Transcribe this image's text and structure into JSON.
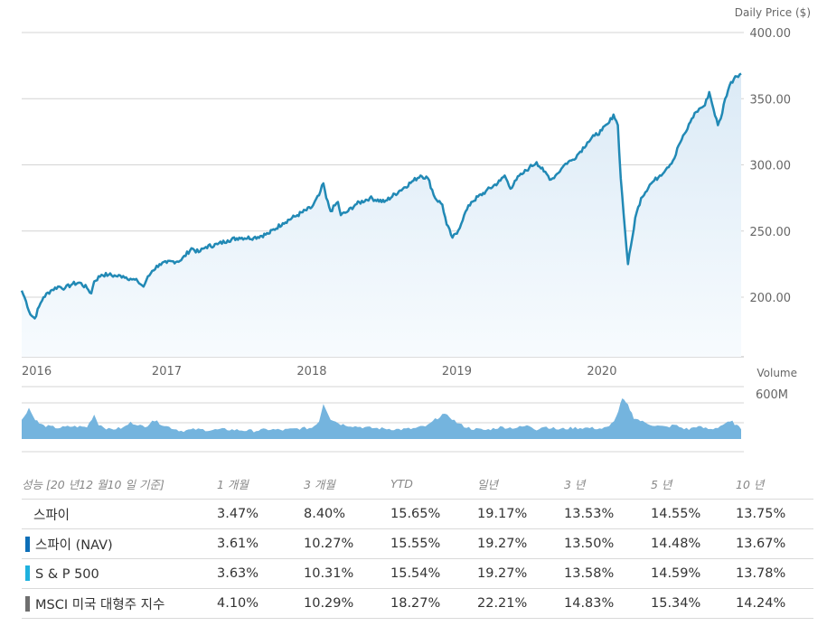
{
  "colors": {
    "line": "#2189b5",
    "fill_top": "#dbeaf6",
    "fill_bottom": "#f7fbfe",
    "grid": "#d4d4d4",
    "volume": "#74b4de",
    "nav": "#0d6fb8",
    "sp500": "#1fb1de",
    "msci": "#6f6f6f"
  },
  "chart_data": [
    {
      "type": "line",
      "ylabel": "Daily Price ($)",
      "y_ticks": [
        "400.00",
        "350.00",
        "300.00",
        "250.00",
        "200.00"
      ],
      "ylim": [
        155,
        400
      ],
      "x_ticks": [
        "2016",
        "2017",
        "2018",
        "2019",
        "2020"
      ],
      "xlim": [
        2016.0,
        2020.96
      ],
      "grid": true,
      "series": [
        {
          "x": [
            2016.0,
            2016.03,
            2016.06,
            2016.09,
            2016.12,
            2016.15,
            2016.2,
            2016.25,
            2016.3,
            2016.35,
            2016.4,
            2016.45,
            2016.48,
            2016.5,
            2016.55,
            2016.6,
            2016.65,
            2016.7,
            2016.75,
            2016.8,
            2016.84,
            2016.86,
            2016.9,
            2016.95,
            2017.0,
            2017.1,
            2017.17,
            2017.22,
            2017.27,
            2017.35,
            2017.42,
            2017.5,
            2017.6,
            2017.7,
            2017.8,
            2017.9,
            2018.0,
            2018.05,
            2018.08,
            2018.1,
            2018.13,
            2018.18,
            2018.2,
            2018.25,
            2018.3,
            2018.4,
            2018.5,
            2018.6,
            2018.7,
            2018.75,
            2018.8,
            2018.85,
            2018.9,
            2018.93,
            2018.97,
            2019.0,
            2019.05,
            2019.1,
            2019.2,
            2019.3,
            2019.33,
            2019.37,
            2019.4,
            2019.45,
            2019.5,
            2019.55,
            2019.6,
            2019.65,
            2019.68,
            2019.72,
            2019.75,
            2019.8,
            2019.85,
            2019.9,
            2019.95,
            2020.0,
            2020.05,
            2020.08,
            2020.11,
            2020.13,
            2020.16,
            2020.18,
            2020.21,
            2020.23,
            2020.27,
            2020.33,
            2020.4,
            2020.45,
            2020.5,
            2020.53,
            2020.58,
            2020.62,
            2020.65,
            2020.68,
            2020.71,
            2020.74,
            2020.77,
            2020.8,
            2020.82,
            2020.85,
            2020.88,
            2020.92,
            2020.96
          ],
          "values": [
            205,
            197,
            187,
            184,
            193,
            200,
            205,
            208,
            207,
            210,
            211,
            207,
            203,
            212,
            217,
            217,
            216,
            216,
            214,
            212,
            208,
            213,
            220,
            225,
            226,
            228,
            237,
            234,
            238,
            240,
            243,
            245,
            245,
            248,
            256,
            262,
            268,
            277,
            286,
            275,
            265,
            272,
            262,
            265,
            270,
            275,
            272,
            280,
            288,
            292,
            290,
            275,
            270,
            255,
            245,
            248,
            262,
            272,
            280,
            288,
            292,
            282,
            288,
            293,
            298,
            302,
            295,
            289,
            292,
            297,
            301,
            304,
            310,
            317,
            322,
            326,
            332,
            338,
            330,
            290,
            250,
            225,
            245,
            260,
            275,
            285,
            292,
            298,
            305,
            315,
            325,
            335,
            340,
            343,
            345,
            355,
            342,
            330,
            335,
            350,
            360,
            367,
            369
          ]
        }
      ]
    },
    {
      "type": "area",
      "ylabel": "Volume",
      "y_ticks": [
        "600M"
      ],
      "ylim": [
        0,
        740
      ],
      "x": [
        2016.0,
        2016.05,
        2016.08,
        2016.12,
        2016.15,
        2016.25,
        2016.35,
        2016.45,
        2016.5,
        2016.53,
        2016.6,
        2016.7,
        2016.75,
        2016.8,
        2016.85,
        2016.9,
        2017.0,
        2017.1,
        2017.2,
        2017.3,
        2017.4,
        2017.5,
        2017.6,
        2017.7,
        2017.8,
        2017.9,
        2018.0,
        2018.05,
        2018.08,
        2018.13,
        2018.2,
        2018.3,
        2018.4,
        2018.5,
        2018.6,
        2018.7,
        2018.8,
        2018.85,
        2018.9,
        2018.95,
        2019.0,
        2019.05,
        2019.1,
        2019.2,
        2019.3,
        2019.4,
        2019.5,
        2019.55,
        2019.6,
        2019.7,
        2019.8,
        2019.9,
        2020.0,
        2020.05,
        2020.1,
        2020.14,
        2020.18,
        2020.22,
        2020.28,
        2020.35,
        2020.4,
        2020.45,
        2020.5,
        2020.55,
        2020.6,
        2020.65,
        2020.7,
        2020.75,
        2020.8,
        2020.85,
        2020.9,
        2020.96
      ],
      "values": [
        250,
        420,
        300,
        210,
        180,
        150,
        170,
        160,
        330,
        200,
        130,
        150,
        220,
        200,
        150,
        260,
        170,
        110,
        130,
        120,
        130,
        120,
        110,
        130,
        120,
        140,
        150,
        240,
        480,
        270,
        200,
        170,
        150,
        140,
        130,
        140,
        180,
        260,
        330,
        300,
        220,
        170,
        140,
        120,
        160,
        150,
        180,
        130,
        170,
        130,
        150,
        150,
        140,
        160,
        300,
        540,
        450,
        290,
        230,
        190,
        170,
        160,
        190,
        150,
        130,
        170,
        150,
        130,
        160,
        210,
        230,
        130
      ]
    }
  ],
  "table": {
    "headers": [
      "성능 [20 년12 월10 일 기준]",
      "1 개월",
      "3 개월",
      "YTD",
      "일년",
      "3 년",
      "5 년",
      "10 년"
    ],
    "rows": [
      {
        "name": "스파이",
        "swatch": "",
        "link": false,
        "values": [
          "3.47%",
          "8.40%",
          "15.65%",
          "19.17%",
          "13.53%",
          "14.55%",
          "13.75%"
        ]
      },
      {
        "name": "스파이 (NAV)",
        "swatch": "nav",
        "link": false,
        "values": [
          "3.61%",
          "10.27%",
          "15.55%",
          "19.27%",
          "13.50%",
          "14.48%",
          "13.67%"
        ]
      },
      {
        "name": "S & P 500",
        "swatch": "sp500",
        "link": true,
        "values": [
          "3.63%",
          "10.31%",
          "15.54%",
          "19.27%",
          "13.58%",
          "14.59%",
          "13.78%"
        ]
      },
      {
        "name": "MSCI 미국 대형주 지수",
        "swatch": "msci",
        "link": false,
        "values": [
          "4.10%",
          "10.29%",
          "18.27%",
          "22.21%",
          "14.83%",
          "15.34%",
          "14.24%"
        ]
      }
    ]
  }
}
